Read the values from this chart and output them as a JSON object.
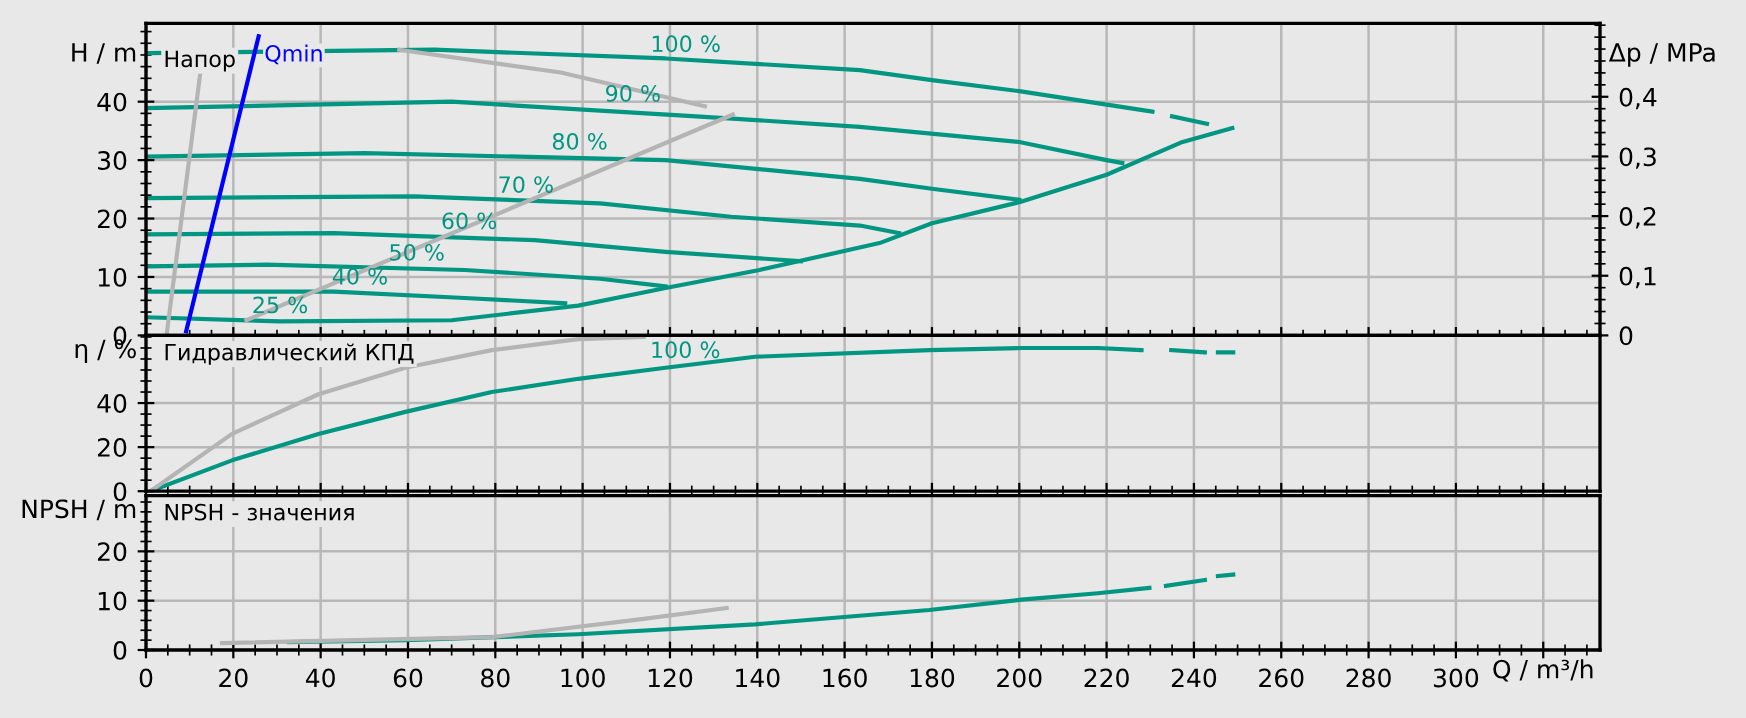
{
  "chart_data": [
    {
      "type": "line",
      "ylabel": "H / m",
      "y2label": "Δp / MPa",
      "xlim": [
        0,
        333
      ],
      "ylim": [
        0,
        53.4
      ],
      "yticks": [
        0,
        10,
        20,
        30,
        40
      ],
      "y2lim": [
        0,
        0.523
      ],
      "y2ticks": [
        {
          "value": 0,
          "label": "0"
        },
        {
          "value": 0.1,
          "label": "0,1"
        },
        {
          "value": 0.2,
          "label": "0,2"
        },
        {
          "value": 0.3,
          "label": "0,3"
        },
        {
          "value": 0.4,
          "label": "0,4"
        }
      ],
      "xticks": [
        {
          "value": 0,
          "label": null
        },
        {
          "value": 20,
          "label": null
        },
        {
          "value": 40,
          "label": null
        },
        {
          "value": 60,
          "label": null
        },
        {
          "value": 80,
          "label": null
        },
        {
          "value": 100,
          "label": null
        },
        {
          "value": 120,
          "label": null
        },
        {
          "value": 140,
          "label": null
        },
        {
          "value": 160,
          "label": null
        },
        {
          "value": 180,
          "label": null
        },
        {
          "value": 200,
          "label": null
        },
        {
          "value": 220,
          "label": null
        },
        {
          "value": 240,
          "label": null
        },
        {
          "value": 260,
          "label": null
        },
        {
          "value": 280,
          "label": null
        },
        {
          "value": 300,
          "label": null
        },
        {
          "value": 320,
          "label": null
        }
      ],
      "tick_labels": "y",
      "grid": true,
      "legend": false,
      "series": [
        {
          "color": "#009682",
          "x": [
            0,
            66,
            119,
            163.5,
            180,
            200,
            220,
            230.5,
            233,
            235,
            243
          ],
          "values": [
            48.3,
            48.9,
            47.4,
            45.4,
            43.7,
            41.8,
            39.5,
            38.3,
            null,
            37.5,
            36.2
          ]
        },
        {
          "color": "#009682",
          "x": [
            0,
            30.7,
            70,
            99,
            119,
            140.5,
            168,
            180,
            200,
            220,
            237,
            248.8
          ],
          "values": [
            3.1,
            2.4,
            2.6,
            5.1,
            8.1,
            11.2,
            15.8,
            19.2,
            22.8,
            27.5,
            33.0,
            35.5
          ]
        },
        {
          "color": "#009682",
          "x": [
            0,
            70,
            126,
            163.5,
            200,
            220,
            223.6
          ],
          "values": [
            38.9,
            40.0,
            37.5,
            35.7,
            33.1,
            30.0,
            29.5
          ]
        },
        {
          "color": "#009682",
          "x": [
            0,
            50,
            119,
            163.5,
            180,
            200
          ],
          "values": [
            30.6,
            31.2,
            30.0,
            26.8,
            25.1,
            23.2
          ]
        },
        {
          "color": "#009682",
          "x": [
            0,
            61.5,
            104,
            134,
            163.5,
            172.5
          ],
          "values": [
            23.5,
            23.8,
            22.6,
            20.3,
            18.8,
            17.5
          ]
        },
        {
          "color": "#009682",
          "x": [
            0,
            43,
            89,
            119,
            150
          ],
          "values": [
            17.3,
            17.5,
            16.3,
            14.3,
            12.7
          ]
        },
        {
          "color": "#009682",
          "x": [
            0,
            27.6,
            73,
            104,
            119
          ],
          "values": [
            11.8,
            12.1,
            11.2,
            9.7,
            8.4
          ]
        },
        {
          "color": "#009682",
          "x": [
            0,
            43,
            73,
            96
          ],
          "values": [
            7.5,
            7.5,
            6.4,
            5.5
          ]
        },
        {
          "color": "#b4b4b4",
          "x": [
            4.7,
            13.1
          ],
          "values": [
            0,
            48.8
          ]
        },
        {
          "color": "#b4b4b4",
          "x": [
            23,
            134.4
          ],
          "values": [
            2.6,
            37.8
          ]
        },
        {
          "color": "#b4b4b4",
          "x": [
            58,
            95,
            128
          ],
          "values": [
            48.9,
            45.0,
            39.2
          ]
        },
        {
          "name": "Qmin",
          "color": "#0000ff",
          "x": [
            9.2,
            25.8
          ],
          "values": [
            0.7,
            51.2
          ]
        }
      ],
      "annotations": [
        "Напор",
        {
          "text": "100 %",
          "x": 123.6,
          "y": 47.2
        },
        {
          "text": "90 %",
          "x": 111.5,
          "y": 38.7
        },
        {
          "text": "80 %",
          "x": 99.3,
          "y": 30.5
        },
        {
          "text": "70 %",
          "x": 87,
          "y": 23.1
        },
        {
          "text": "60 %",
          "x": 74,
          "y": 16.9
        },
        {
          "text": "50 %",
          "x": 62,
          "y": 11.5
        },
        {
          "text": "40 %",
          "x": 49,
          "y": 7.4
        },
        {
          "text": "25 %",
          "x": 30.7,
          "y": 2.5
        }
      ]
    },
    {
      "type": "line",
      "ylabel": "η / %",
      "xlim": [
        0,
        333
      ],
      "ylim": [
        0,
        70.7
      ],
      "yticks": [
        0,
        20,
        40
      ],
      "xticks": [
        {
          "value": 0,
          "label": null
        },
        {
          "value": 20,
          "label": null
        },
        {
          "value": 40,
          "label": null
        },
        {
          "value": 60,
          "label": null
        },
        {
          "value": 80,
          "label": null
        },
        {
          "value": 100,
          "label": null
        },
        {
          "value": 120,
          "label": null
        },
        {
          "value": 140,
          "label": null
        },
        {
          "value": 160,
          "label": null
        },
        {
          "value": 180,
          "label": null
        },
        {
          "value": 200,
          "label": null
        },
        {
          "value": 220,
          "label": null
        },
        {
          "value": 240,
          "label": null
        },
        {
          "value": 260,
          "label": null
        },
        {
          "value": 280,
          "label": null
        },
        {
          "value": 300,
          "label": null
        },
        {
          "value": 320,
          "label": null
        }
      ],
      "tick_labels": "y",
      "grid": true,
      "legend": false,
      "series": [
        {
          "color": "#009682",
          "x": [
            1,
            19.7,
            39.5,
            59.4,
            79.2,
            99,
            119,
            139.5,
            179.4,
            200.5,
            218,
            228,
            231,
            234.8,
            242.5,
            244,
            245.5,
            249
          ],
          "values": [
            0,
            14,
            26,
            36,
            45,
            51,
            56,
            61,
            64,
            65,
            65,
            64,
            null,
            64,
            63,
            null,
            63,
            63
          ]
        },
        {
          "color": "#b4b4b4",
          "x": [
            1,
            19.7,
            39.5,
            59.4,
            79.2,
            99,
            114
          ],
          "values": [
            0,
            26,
            44,
            56,
            64,
            69,
            70
          ]
        }
      ],
      "annotations": [
        "Гидравлический КПД",
        {
          "text": "100 %",
          "x": 123.5,
          "y": 57
        }
      ]
    },
    {
      "type": "line",
      "ylabel": "NPSH / m",
      "xlabel": "Q / m³/h",
      "xlim": [
        0,
        333
      ],
      "ylim": [
        0,
        31.3
      ],
      "yticks": [
        0,
        10,
        20
      ],
      "xticks": [
        0,
        20,
        40,
        60,
        80,
        100,
        120,
        140,
        160,
        180,
        200,
        220,
        240,
        260,
        280,
        300,
        {
          "value": 320,
          "label": null
        }
      ],
      "grid": true,
      "legend": false,
      "series": [
        {
          "color": "#009682",
          "x": [
            32.7,
            59.4,
            99,
            139.5,
            179.4,
            200.5,
            218,
            229.8,
            231.5,
            233.6,
            242.5,
            244,
            245.5,
            249
          ],
          "values": [
            1.6,
            2.0,
            3.2,
            5.2,
            8.1,
            10.2,
            11.5,
            12.6,
            null,
            13.0,
            14.2,
            null,
            15.0,
            15.3
          ]
        },
        {
          "color": "#b4b4b4",
          "x": [
            17.4,
            79.2,
            114,
            133
          ],
          "values": [
            1.4,
            2.6,
            6.3,
            8.5
          ]
        }
      ],
      "annotations": [
        "NPSH - значения"
      ]
    }
  ]
}
